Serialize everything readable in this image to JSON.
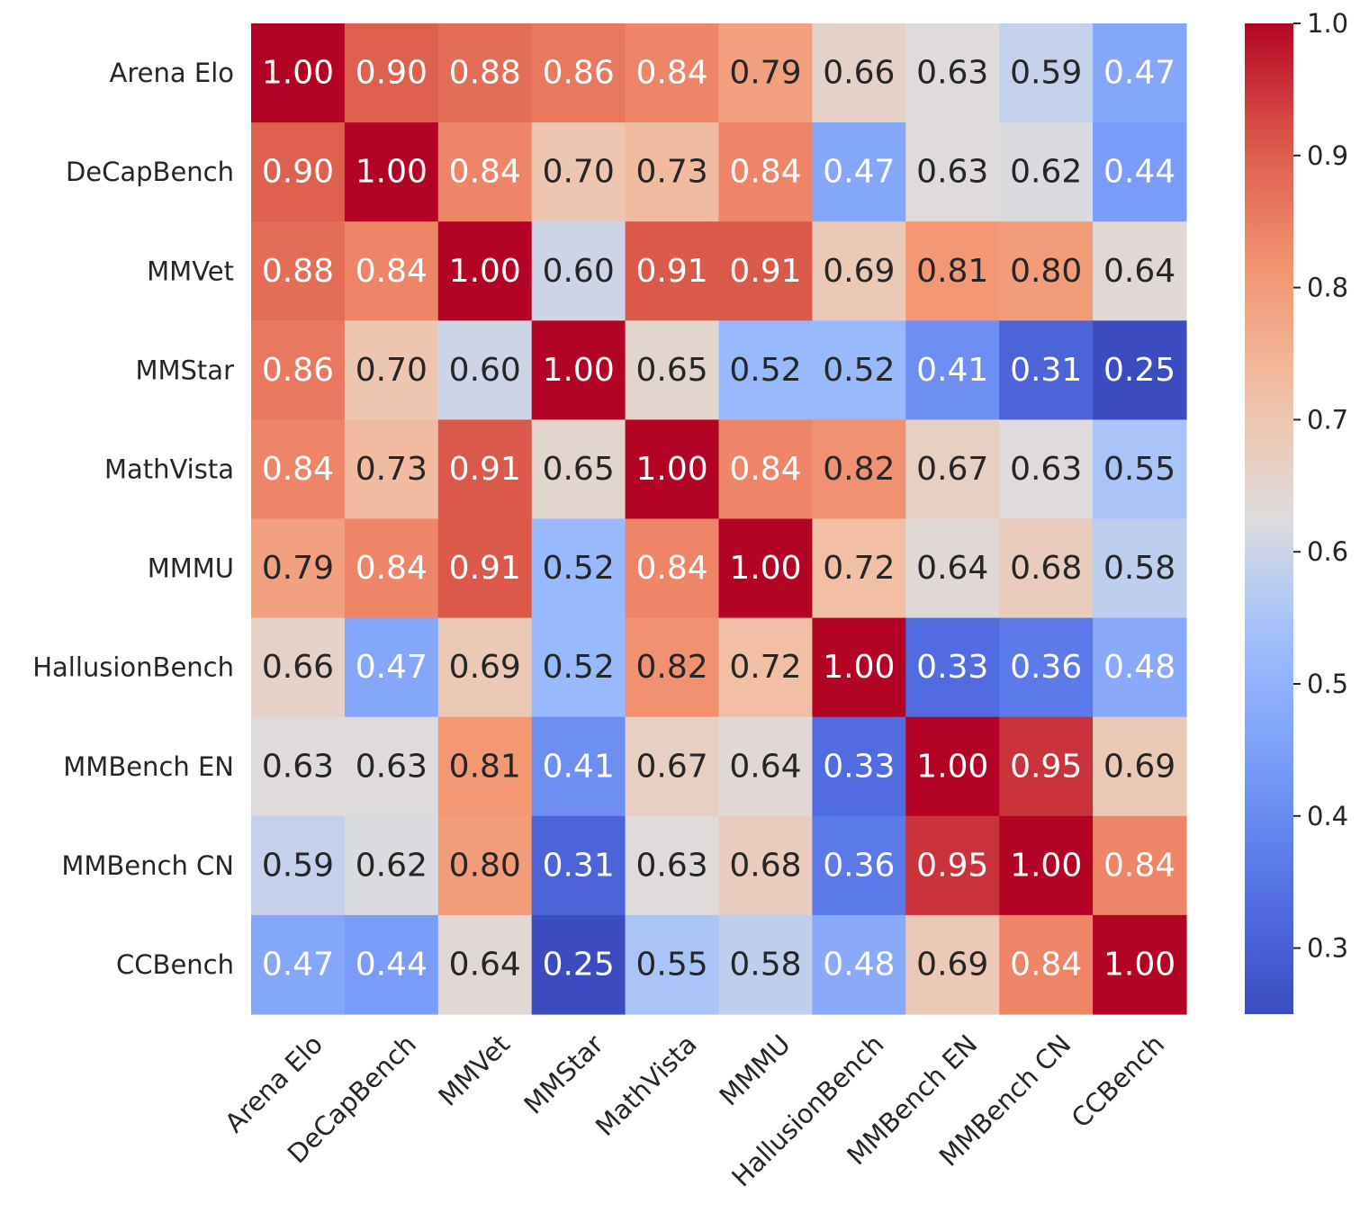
{
  "chart_data": {
    "type": "heatmap",
    "title": "",
    "xlabel": "",
    "ylabel": "",
    "colormap": "coolwarm",
    "vmin": 0.25,
    "vmax": 1.0,
    "x_labels": [
      "Arena Elo",
      "DeCapBench",
      "MMVet",
      "MMStar",
      "MathVista",
      "MMMU",
      "HallusionBench",
      "MMBench EN",
      "MMBench CN",
      "CCBench"
    ],
    "y_labels": [
      "Arena Elo",
      "DeCapBench",
      "MMVet",
      "MMStar",
      "MathVista",
      "MMMU",
      "HallusionBench",
      "MMBench EN",
      "MMBench CN",
      "CCBench"
    ],
    "values": [
      [
        1.0,
        0.9,
        0.88,
        0.86,
        0.84,
        0.79,
        0.66,
        0.63,
        0.59,
        0.47
      ],
      [
        0.9,
        1.0,
        0.84,
        0.7,
        0.73,
        0.84,
        0.47,
        0.63,
        0.62,
        0.44
      ],
      [
        0.88,
        0.84,
        1.0,
        0.6,
        0.91,
        0.91,
        0.69,
        0.81,
        0.8,
        0.64
      ],
      [
        0.86,
        0.7,
        0.6,
        1.0,
        0.65,
        0.52,
        0.52,
        0.41,
        0.31,
        0.25
      ],
      [
        0.84,
        0.73,
        0.91,
        0.65,
        1.0,
        0.84,
        0.82,
        0.67,
        0.63,
        0.55
      ],
      [
        0.79,
        0.84,
        0.91,
        0.52,
        0.84,
        1.0,
        0.72,
        0.64,
        0.68,
        0.58
      ],
      [
        0.66,
        0.47,
        0.69,
        0.52,
        0.82,
        0.72,
        1.0,
        0.33,
        0.36,
        0.48
      ],
      [
        0.63,
        0.63,
        0.81,
        0.41,
        0.67,
        0.64,
        0.33,
        1.0,
        0.95,
        0.69
      ],
      [
        0.59,
        0.62,
        0.8,
        0.31,
        0.63,
        0.68,
        0.36,
        0.95,
        1.0,
        0.84
      ],
      [
        0.47,
        0.44,
        0.64,
        0.25,
        0.55,
        0.58,
        0.48,
        0.69,
        0.84,
        1.0
      ]
    ],
    "colorbar": {
      "ticks": [
        0.3,
        0.4,
        0.5,
        0.6,
        0.7,
        0.8,
        0.9,
        1.0
      ],
      "tick_labels": [
        "0.3",
        "0.4",
        "0.5",
        "0.6",
        "0.7",
        "0.8",
        "0.9",
        "1.0"
      ]
    }
  }
}
